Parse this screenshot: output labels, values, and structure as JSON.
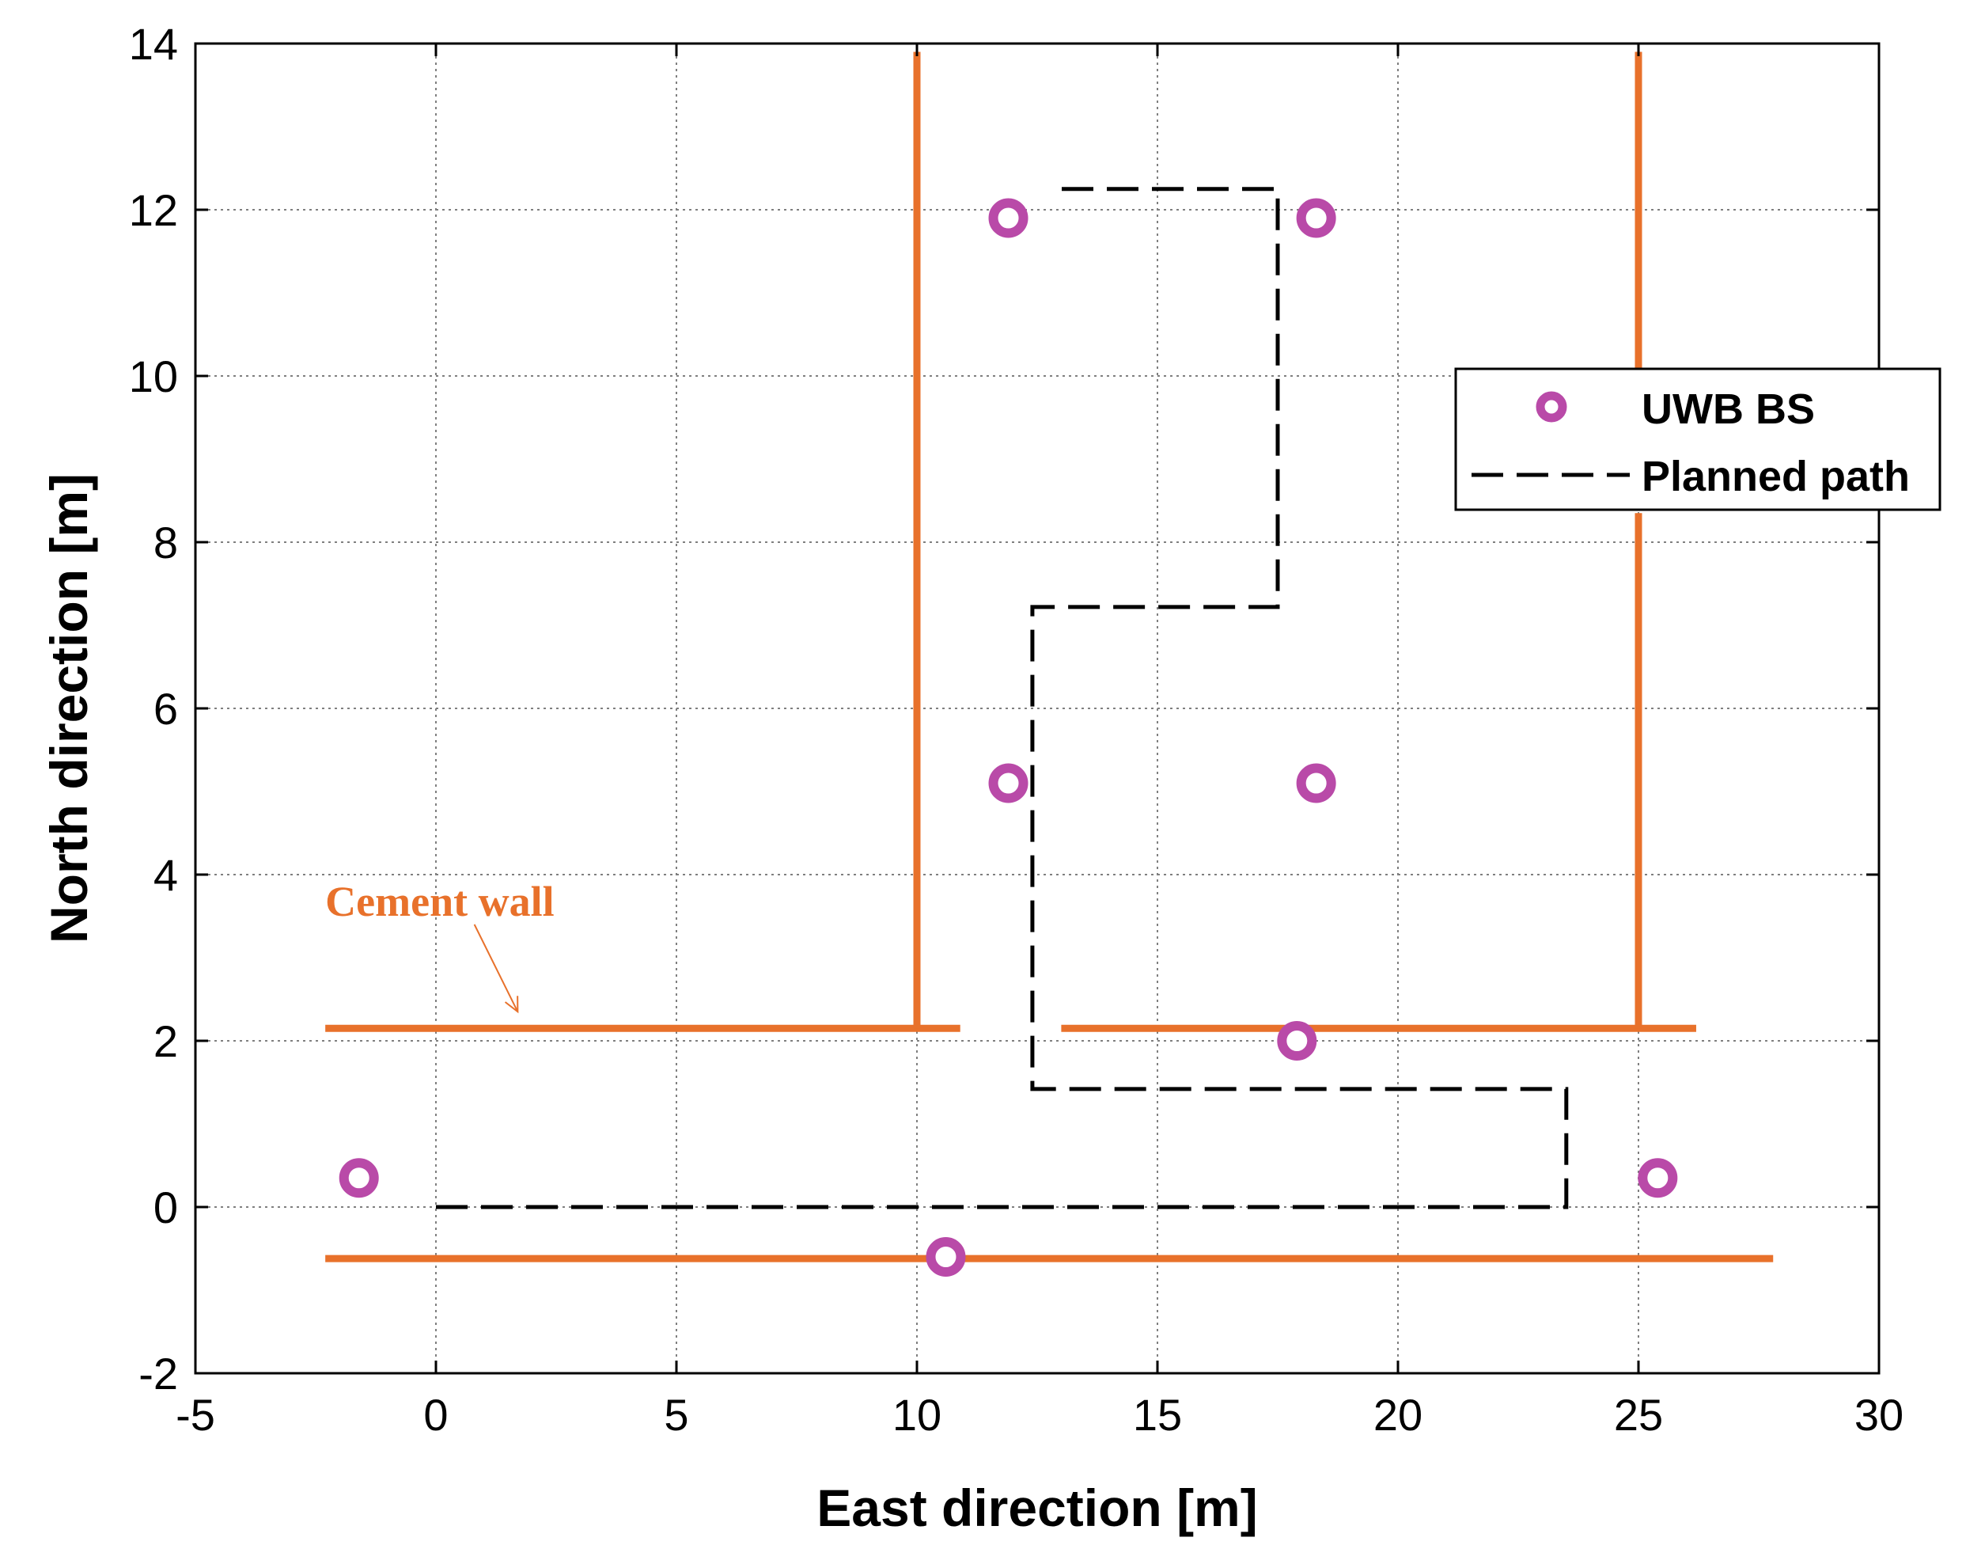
{
  "chart_data": {
    "type": "scatter",
    "title": "",
    "xlabel": "East direction [m]",
    "ylabel": "North direction [m]",
    "xlim": [
      -5,
      30
    ],
    "ylim": [
      -2,
      14
    ],
    "xticks": [
      -5,
      0,
      5,
      10,
      15,
      20,
      25,
      30
    ],
    "yticks": [
      -2,
      0,
      2,
      4,
      6,
      8,
      10,
      12,
      14
    ],
    "xtick_labels": [
      "-5",
      "0",
      "5",
      "10",
      "15",
      "20",
      "25",
      "30"
    ],
    "ytick_labels": [
      "-2",
      "0",
      "2",
      "4",
      "6",
      "8",
      "10",
      "12",
      "14"
    ],
    "grid": true,
    "legend_position": "right",
    "series": [
      {
        "name": "UWB BS",
        "kind": "markers",
        "marker": "circle",
        "color": "#b94aa8",
        "x": [
          -1.6,
          10.6,
          11.9,
          18.3,
          11.9,
          18.3,
          17.9,
          25.4
        ],
        "y": [
          0.35,
          -0.6,
          11.9,
          11.9,
          5.1,
          5.1,
          2.0,
          0.35
        ]
      },
      {
        "name": "Planned path",
        "kind": "dashed-line",
        "color": "#000000",
        "x": [
          0,
          23.5,
          23.5,
          12.4,
          12.4,
          17.5,
          17.5,
          12.9
        ],
        "y": [
          0,
          0,
          1.42,
          1.42,
          7.22,
          7.22,
          12.25,
          12.25
        ]
      }
    ],
    "walls": {
      "color": "#e8712b",
      "segments": [
        {
          "x": [
            -2.3,
            27.8
          ],
          "y": [
            -0.62,
            -0.62
          ]
        },
        {
          "x": [
            -2.3,
            10.9
          ],
          "y": [
            2.15,
            2.15
          ]
        },
        {
          "x": [
            13.0,
            26.2
          ],
          "y": [
            2.15,
            2.15
          ]
        },
        {
          "x": [
            10.0,
            10.0
          ],
          "y": [
            2.15,
            13.9
          ]
        },
        {
          "x": [
            25.0,
            25.0
          ],
          "y": [
            2.15,
            8.35
          ]
        },
        {
          "x": [
            25.0,
            25.0
          ],
          "y": [
            10.05,
            13.9
          ]
        }
      ]
    },
    "annotations": [
      {
        "text": "Cement wall",
        "color": "#e8712b",
        "label_at": [
          -2.3,
          3.6
        ],
        "arrow_from": [
          0.8,
          3.4
        ],
        "arrow_to": [
          1.7,
          2.35
        ]
      }
    ]
  }
}
